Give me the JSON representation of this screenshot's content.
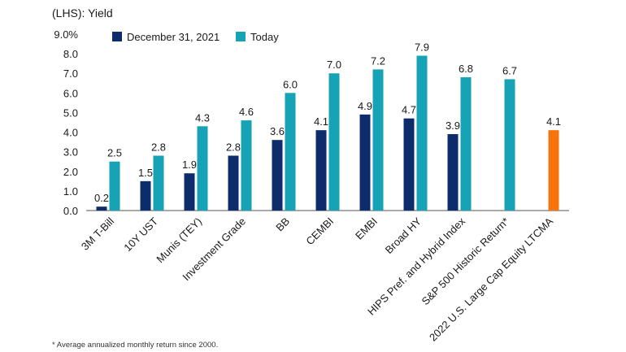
{
  "chart_data": {
    "type": "bar",
    "title": "",
    "ylabel": "(LHS): Yield",
    "xlabel": "",
    "ylim": [
      0,
      9
    ],
    "yticks": [
      "0.0",
      "1.0",
      "2.0",
      "3.0",
      "4.0",
      "5.0",
      "6.0",
      "7.0",
      "8.0",
      "9.0%"
    ],
    "categories": [
      "3M T-Bill",
      "10Y UST",
      "Munis (TEY)",
      "Investment Grade",
      "BB",
      "CEMBI",
      "EMBI",
      "Broad HY",
      "HIPS Pref. and Hybrid Index",
      "S&P 500 Historic Return*",
      "2022 U.S. Large Cap Equity LTCMA"
    ],
    "series": [
      {
        "name": "December 31, 2021",
        "color": "#0d2c6c",
        "values": [
          0.2,
          1.5,
          1.9,
          2.8,
          3.6,
          4.1,
          4.9,
          4.7,
          3.9,
          null,
          null
        ],
        "labels": [
          "0.2",
          "1.5",
          "1.9",
          "2.8",
          "3.6",
          "4.1",
          "4.9",
          "4.7",
          "3.9",
          "",
          ""
        ]
      },
      {
        "name": "Today",
        "color": "#16a3b6",
        "values": [
          2.5,
          2.8,
          4.3,
          4.6,
          6.0,
          7.0,
          7.2,
          7.9,
          6.8,
          6.7,
          null
        ],
        "labels": [
          "2.5",
          "2.8",
          "4.3",
          "4.6",
          "6.0",
          "7.0",
          "7.2",
          "7.9",
          "6.8",
          "6.7",
          ""
        ]
      },
      {
        "name": "",
        "color": "#f5740e",
        "values": [
          null,
          null,
          null,
          null,
          null,
          null,
          null,
          null,
          null,
          null,
          4.1
        ],
        "labels": [
          "",
          "",
          "",
          "",
          "",
          "",
          "",
          "",
          "",
          "",
          "4.1"
        ]
      }
    ],
    "legend_position": "top",
    "grid": false
  },
  "footnote": "* Average annualized monthly return since 2000."
}
